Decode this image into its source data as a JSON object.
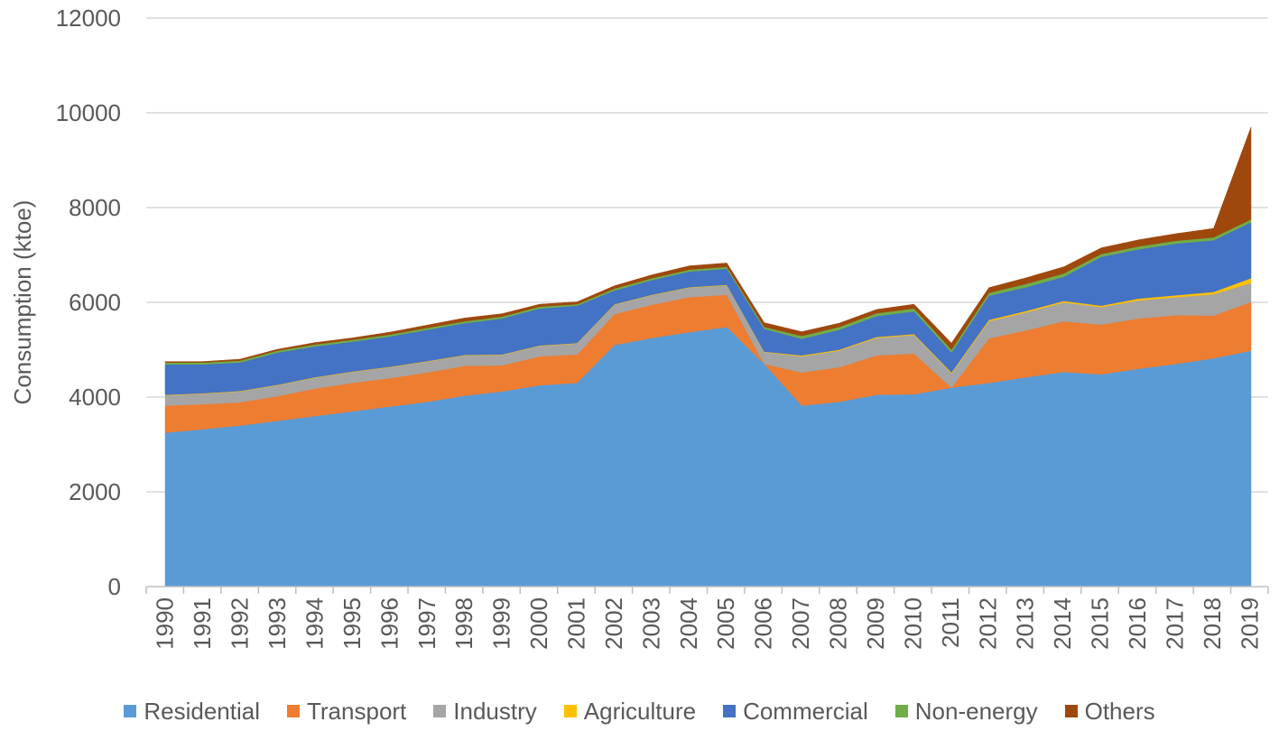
{
  "chart_data": {
    "type": "area",
    "stacked": true,
    "title": "",
    "xlabel": "",
    "ylabel": "Consumption (ktoe)",
    "ylim": [
      0,
      12000
    ],
    "yticks": [
      "0",
      "2000",
      "4000",
      "6000",
      "8000",
      "10000",
      "12000"
    ],
    "grid": true,
    "legend_position": "bottom",
    "categories": [
      "1990",
      "1991",
      "1992",
      "1993",
      "1994",
      "1995",
      "1996",
      "1997",
      "1998",
      "1999",
      "2000",
      "2001",
      "2002",
      "2003",
      "2004",
      "2005",
      "2006",
      "2007",
      "2008",
      "2009",
      "2010",
      "2011",
      "2012",
      "2013",
      "2014",
      "2015",
      "2016",
      "2017",
      "2018",
      "2019"
    ],
    "series": [
      {
        "name": "Residential",
        "color": "#5B9BD5",
        "values": [
          3250,
          3320,
          3400,
          3500,
          3600,
          3700,
          3800,
          3900,
          4030,
          4120,
          4250,
          4300,
          5100,
          5250,
          5370,
          5480,
          4700,
          3820,
          3900,
          4050,
          4060,
          4200,
          4300,
          4420,
          4530,
          4480,
          4600,
          4700,
          4820,
          4980
        ]
      },
      {
        "name": "Transport",
        "color": "#ED7D31",
        "values": [
          570,
          530,
          490,
          520,
          580,
          600,
          600,
          620,
          630,
          550,
          610,
          600,
          650,
          700,
          740,
          680,
          0,
          700,
          730,
          830,
          860,
          0,
          940,
          990,
          1070,
          1050,
          1060,
          1030,
          900,
          1030
        ]
      },
      {
        "name": "Industry",
        "color": "#A5A5A5",
        "values": [
          220,
          220,
          230,
          230,
          230,
          230,
          230,
          230,
          220,
          220,
          220,
          230,
          200,
          200,
          200,
          200,
          250,
          340,
          350,
          370,
          390,
          300,
          360,
          380,
          400,
          370,
          380,
          380,
          450,
          400
        ]
      },
      {
        "name": "Agriculture",
        "color": "#FFC000",
        "values": [
          10,
          10,
          10,
          10,
          10,
          10,
          10,
          10,
          10,
          10,
          10,
          10,
          10,
          10,
          10,
          10,
          10,
          20,
          20,
          20,
          20,
          20,
          30,
          30,
          30,
          30,
          40,
          40,
          50,
          100
        ]
      },
      {
        "name": "Commercial",
        "color": "#4472C4",
        "values": [
          640,
          610,
          600,
          680,
          650,
          630,
          640,
          660,
          670,
          760,
          780,
          790,
          290,
          310,
          330,
          340,
          480,
          350,
          420,
          440,
          480,
          420,
          510,
          500,
          510,
          1030,
          1040,
          1090,
          1090,
          1180
        ]
      },
      {
        "name": "Non-energy",
        "color": "#70AD47",
        "values": [
          40,
          40,
          40,
          40,
          40,
          40,
          40,
          40,
          40,
          40,
          40,
          30,
          40,
          40,
          40,
          40,
          40,
          60,
          60,
          60,
          60,
          60,
          60,
          70,
          70,
          60,
          60,
          60,
          60,
          60
        ]
      },
      {
        "name": "Others",
        "color": "#9E480E",
        "values": [
          20,
          20,
          30,
          30,
          40,
          40,
          50,
          60,
          70,
          60,
          50,
          50,
          60,
          70,
          80,
          80,
          90,
          90,
          80,
          80,
          90,
          140,
          110,
          130,
          140,
          130,
          140,
          150,
          190,
          1950
        ]
      }
    ]
  }
}
